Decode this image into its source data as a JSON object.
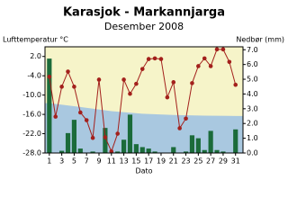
{
  "chart_data": {
    "type": "combo",
    "title": "Karasjok - Markannjarga",
    "subtitle": "Desember 2008",
    "y_label": "Lufttemperatur °C",
    "y2_label": "Nedbør (mm)",
    "x_label": "Dato",
    "x": [
      1,
      2,
      3,
      4,
      5,
      6,
      7,
      8,
      9,
      10,
      11,
      12,
      13,
      14,
      15,
      16,
      17,
      18,
      19,
      20,
      21,
      22,
      23,
      24,
      25,
      26,
      27,
      28,
      29,
      30,
      31
    ],
    "xlim": [
      0.3,
      32.2
    ],
    "xticks": [
      1,
      3,
      5,
      7,
      9,
      11,
      13,
      15,
      17,
      19,
      21,
      23,
      25,
      27,
      29,
      31
    ],
    "ylim": [
      -28,
      5
    ],
    "yticks": [
      {
        "value": -28,
        "label": "-28.0"
      },
      {
        "value": -22,
        "label": "-22.0"
      },
      {
        "value": -16,
        "label": "-16.0"
      },
      {
        "value": -10,
        "label": "-10.0"
      },
      {
        "value": -4,
        "label": "-4.0"
      },
      {
        "value": 2,
        "label": "2.0"
      }
    ],
    "y2lim": [
      0,
      7.2
    ],
    "y2ticks": [
      {
        "value": 0,
        "label": "0.0"
      },
      {
        "value": 1,
        "label": "1.0"
      },
      {
        "value": 2,
        "label": "2.0"
      },
      {
        "value": 3,
        "label": "3.0"
      },
      {
        "value": 4,
        "label": "4.0"
      },
      {
        "value": 5,
        "label": "5.0"
      },
      {
        "value": 6,
        "label": "6.0"
      },
      {
        "value": 7,
        "label": "7.0"
      }
    ],
    "background_color": "#f6f4c9",
    "band": {
      "color": "#a9c8e0",
      "x": [
        1,
        6,
        11,
        16,
        21,
        26,
        31
      ],
      "values": [
        -12.5,
        -13.7,
        -15,
        -15.8,
        -16.2,
        -16.4,
        -16.5
      ]
    },
    "series": [
      {
        "type": "bar",
        "axis": "y2",
        "color": "#1b6b3a",
        "values": [
          6.4,
          0,
          0.15,
          1.35,
          2.25,
          0.3,
          0,
          0.1,
          0,
          1.7,
          0,
          0.1,
          0.9,
          2.6,
          0.6,
          0.4,
          0.3,
          0.1,
          0,
          0,
          0.4,
          0,
          0.1,
          1.2,
          1.0,
          0.2,
          1.5,
          0.2,
          0.1,
          0,
          1.6
        ]
      },
      {
        "type": "line",
        "color": "#a3201c",
        "values": [
          -4.3,
          -16.7,
          -7.4,
          -2.7,
          -7.4,
          -15.4,
          -17.8,
          -23.3,
          -5.2,
          -23.1,
          -27.5,
          -22,
          -5.2,
          -9.6,
          -6.5,
          -1.9,
          1.2,
          1.4,
          1.2,
          -10.7,
          -6,
          -20.3,
          -17.3,
          -6.3,
          -1,
          1.4,
          -1,
          4.2,
          4.2,
          0.3,
          -6.8
        ]
      }
    ]
  }
}
